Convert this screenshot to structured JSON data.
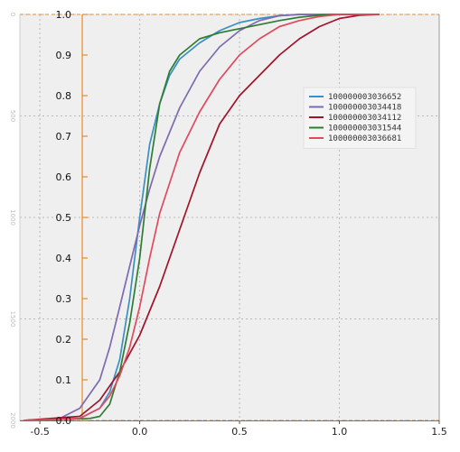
{
  "chart_data": {
    "type": "line",
    "title": "",
    "xlabel": "",
    "ylabel": "",
    "xlim": [
      -0.6,
      1.5
    ],
    "ylim": [
      0.0,
      1.0
    ],
    "x_ticks": [
      "-0.5",
      "0.0",
      "0.5",
      "1.0",
      "1.5"
    ],
    "x_tick_values": [
      -0.5,
      0.0,
      0.5,
      1.0,
      1.5
    ],
    "y_ticks": [
      "0.0",
      "0.1",
      "0.2",
      "0.3",
      "0.4",
      "0.5",
      "0.6",
      "0.7",
      "0.8",
      "0.9",
      "1.0"
    ],
    "y_tick_values": [
      0.0,
      0.1,
      0.2,
      0.3,
      0.4,
      0.5,
      0.6,
      0.7,
      0.8,
      0.9,
      1.0
    ],
    "secondary_axis_labels": [
      "0",
      "500",
      "1000",
      "1500",
      "2000"
    ],
    "secondary_axis_values": [
      1.0,
      0.75,
      0.5,
      0.25,
      0.0
    ],
    "grid": true,
    "legend_position": "right",
    "series": [
      {
        "name": "100000003036652",
        "color": "#3b8fc4",
        "x": [
          -0.58,
          -0.3,
          -0.2,
          -0.15,
          -0.1,
          -0.05,
          0.0,
          0.05,
          0.1,
          0.15,
          0.2,
          0.3,
          0.4,
          0.5,
          0.6,
          0.7,
          0.8,
          1.2
        ],
        "y": [
          0.0,
          0.005,
          0.03,
          0.07,
          0.15,
          0.3,
          0.5,
          0.68,
          0.78,
          0.85,
          0.89,
          0.93,
          0.96,
          0.98,
          0.99,
          0.997,
          1.0,
          1.0
        ]
      },
      {
        "name": "100000003034418",
        "color": "#7f6ab0",
        "x": [
          -0.58,
          -0.4,
          -0.3,
          -0.2,
          -0.15,
          -0.1,
          -0.05,
          0.0,
          0.05,
          0.1,
          0.2,
          0.3,
          0.4,
          0.5,
          0.6,
          0.7,
          0.8,
          1.2
        ],
        "y": [
          0.0,
          0.005,
          0.03,
          0.1,
          0.18,
          0.28,
          0.38,
          0.48,
          0.57,
          0.65,
          0.77,
          0.86,
          0.92,
          0.96,
          0.985,
          0.997,
          1.0,
          1.0
        ]
      },
      {
        "name": "100000003034112",
        "color": "#a3122a",
        "x": [
          -0.58,
          -0.3,
          -0.2,
          -0.1,
          0.0,
          0.1,
          0.2,
          0.3,
          0.4,
          0.5,
          0.6,
          0.7,
          0.8,
          0.9,
          1.0,
          1.1,
          1.2
        ],
        "y": [
          0.0,
          0.01,
          0.05,
          0.12,
          0.21,
          0.33,
          0.47,
          0.61,
          0.73,
          0.8,
          0.85,
          0.9,
          0.94,
          0.97,
          0.99,
          0.998,
          1.0
        ]
      },
      {
        "name": "100000003031544",
        "color": "#2e7d32",
        "x": [
          -0.58,
          -0.25,
          -0.2,
          -0.15,
          -0.1,
          -0.05,
          0.0,
          0.05,
          0.1,
          0.15,
          0.2,
          0.3,
          0.4,
          0.5,
          0.6,
          0.7,
          0.8,
          0.9,
          1.0,
          1.2
        ],
        "y": [
          0.0,
          0.005,
          0.01,
          0.04,
          0.12,
          0.24,
          0.4,
          0.62,
          0.78,
          0.86,
          0.9,
          0.94,
          0.955,
          0.965,
          0.975,
          0.985,
          0.993,
          0.998,
          1.0,
          1.0
        ]
      },
      {
        "name": "100000003036681",
        "color": "#e04a5e",
        "x": [
          -0.58,
          -0.3,
          -0.2,
          -0.15,
          -0.1,
          -0.05,
          0.0,
          0.05,
          0.1,
          0.2,
          0.3,
          0.4,
          0.5,
          0.6,
          0.7,
          0.8,
          0.9,
          1.0,
          1.2
        ],
        "y": [
          0.0,
          0.005,
          0.03,
          0.06,
          0.11,
          0.18,
          0.28,
          0.4,
          0.51,
          0.66,
          0.76,
          0.84,
          0.9,
          0.94,
          0.97,
          0.985,
          0.995,
          1.0,
          1.0
        ]
      }
    ]
  }
}
